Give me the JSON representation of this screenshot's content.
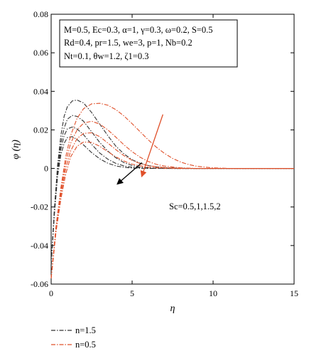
{
  "chart_data": {
    "type": "line",
    "xlabel": "η",
    "ylabel": "φ (η)",
    "xlim": [
      0,
      15
    ],
    "ylim": [
      -0.06,
      0.08
    ],
    "x_ticks": [
      0,
      5,
      10,
      15
    ],
    "y_ticks": [
      -0.06,
      -0.04,
      -0.02,
      0,
      0.02,
      0.04,
      0.06,
      0.08
    ],
    "x_tick_labels": [
      "0",
      "5",
      "10",
      "15"
    ],
    "y_tick_labels": [
      "-0.06",
      "-0.04",
      "-0.02",
      "0",
      "0.02",
      "0.04",
      "0.06",
      "0.08"
    ],
    "params": [
      "M=0.5, Ec=0.3, α=1, γ=0.3, ω=0.2, S=0.5",
      "Rd=0.4, pr=1.5, we=3, p=1, Nb=0.2",
      "Nt=0.1, θw=1.2, ζ1=0.3"
    ],
    "annotation": "Sc=0.5,1,1.5,2",
    "legend": [
      {
        "label": "n=1.5",
        "color": "#333333",
        "dash": "dashdot"
      },
      {
        "label": "n=0.5",
        "color": "#e0502a",
        "dash": "dashdot"
      }
    ],
    "series": [
      {
        "name": "n=1.5",
        "sc": 0.5,
        "color": "#333333",
        "x": [
          0,
          0.2,
          0.4,
          0.6,
          0.8,
          1,
          1.3,
          1.6,
          2,
          2.5,
          3,
          3.5,
          4,
          4.5,
          5,
          5.5,
          6,
          6.5,
          7,
          8,
          9,
          10,
          12,
          15
        ],
        "y": [
          -0.05,
          -0.021,
          0.002,
          0.017,
          0.027,
          0.032,
          0.035,
          0.0355,
          0.034,
          0.029,
          0.023,
          0.017,
          0.0115,
          0.0075,
          0.0045,
          0.0027,
          0.0015,
          0.0008,
          0.0004,
          0.0001,
          0,
          0,
          0,
          0
        ]
      },
      {
        "name": "n=1.5",
        "sc": 1,
        "color": "#333333",
        "x": [
          0,
          0.2,
          0.4,
          0.6,
          0.8,
          1,
          1.3,
          1.6,
          2,
          2.5,
          3,
          3.5,
          4,
          4.5,
          5,
          5.5,
          6,
          7,
          8,
          10,
          15
        ],
        "y": [
          -0.05,
          -0.022,
          0,
          0.013,
          0.021,
          0.0255,
          0.0275,
          0.027,
          0.0245,
          0.019,
          0.0135,
          0.009,
          0.0055,
          0.003,
          0.0015,
          0.0007,
          0.0003,
          0,
          0,
          0,
          0
        ]
      },
      {
        "name": "n=1.5",
        "sc": 1.5,
        "color": "#333333",
        "x": [
          0,
          0.2,
          0.4,
          0.6,
          0.8,
          1,
          1.3,
          1.6,
          2,
          2.5,
          3,
          3.5,
          4,
          4.5,
          5,
          6,
          8,
          10,
          15
        ],
        "y": [
          -0.05,
          -0.023,
          -0.002,
          0.01,
          0.017,
          0.0205,
          0.0215,
          0.0205,
          0.0175,
          0.0125,
          0.008,
          0.0048,
          0.0026,
          0.0013,
          0.0006,
          0.0001,
          0,
          0,
          0
        ]
      },
      {
        "name": "n=1.5",
        "sc": 2,
        "color": "#333333",
        "x": [
          0,
          0.2,
          0.4,
          0.6,
          0.8,
          1,
          1.3,
          1.6,
          2,
          2.5,
          3,
          3.5,
          4,
          4.5,
          5,
          6,
          8,
          10,
          15
        ],
        "y": [
          -0.05,
          -0.024,
          -0.004,
          0.007,
          0.013,
          0.016,
          0.0165,
          0.015,
          0.0122,
          0.0082,
          0.005,
          0.0027,
          0.0013,
          0.0006,
          0.0002,
          0,
          0,
          0,
          0
        ]
      },
      {
        "name": "n=0.5",
        "sc": 0.5,
        "color": "#e0502a",
        "x": [
          0,
          0.3,
          0.6,
          0.9,
          1.2,
          1.6,
          2,
          2.5,
          3,
          3.5,
          4,
          4.5,
          5,
          5.5,
          6,
          6.5,
          7,
          7.5,
          8,
          8.5,
          9,
          10,
          11,
          12,
          15
        ],
        "y": [
          -0.057,
          -0.03,
          -0.01,
          0.006,
          0.017,
          0.026,
          0.031,
          0.0335,
          0.0338,
          0.0328,
          0.0305,
          0.0272,
          0.0232,
          0.019,
          0.0148,
          0.011,
          0.0078,
          0.0052,
          0.0033,
          0.002,
          0.0011,
          0.0003,
          0,
          0,
          0
        ]
      },
      {
        "name": "n=0.5",
        "sc": 1,
        "color": "#e0502a",
        "x": [
          0,
          0.3,
          0.6,
          0.9,
          1.2,
          1.6,
          2,
          2.5,
          3,
          3.5,
          4,
          4.5,
          5,
          5.5,
          6,
          6.5,
          7,
          8,
          9,
          10,
          12,
          15
        ],
        "y": [
          -0.057,
          -0.031,
          -0.012,
          0.003,
          0.013,
          0.02,
          0.0235,
          0.0245,
          0.023,
          0.02,
          0.0162,
          0.0122,
          0.0087,
          0.0058,
          0.0036,
          0.0021,
          0.0012,
          0.0003,
          0,
          0,
          0,
          0
        ]
      },
      {
        "name": "n=0.5",
        "sc": 1.5,
        "color": "#e0502a",
        "x": [
          0,
          0.3,
          0.6,
          0.9,
          1.2,
          1.6,
          2,
          2.5,
          3,
          3.5,
          4,
          4.5,
          5,
          5.5,
          6,
          7,
          8,
          10,
          15
        ],
        "y": [
          -0.057,
          -0.032,
          -0.014,
          0,
          0.009,
          0.0155,
          0.0182,
          0.0185,
          0.0165,
          0.0132,
          0.0097,
          0.0066,
          0.0042,
          0.0025,
          0.0014,
          0.0004,
          0,
          0,
          0
        ]
      },
      {
        "name": "n=0.5",
        "sc": 2,
        "color": "#e0502a",
        "x": [
          0,
          0.3,
          0.6,
          0.9,
          1.2,
          1.6,
          2,
          2.5,
          3,
          3.5,
          4,
          4.5,
          5,
          6,
          7,
          8,
          10,
          15
        ],
        "y": [
          -0.057,
          -0.033,
          -0.016,
          -0.003,
          0.006,
          0.0115,
          0.0137,
          0.0135,
          0.0115,
          0.0087,
          0.006,
          0.0038,
          0.0022,
          0.0006,
          0.0001,
          0,
          0,
          0
        ]
      }
    ],
    "arrows": [
      {
        "color": "#000000",
        "from": [
          5.6,
          0.003
        ],
        "to": [
          4.1,
          -0.008
        ]
      },
      {
        "color": "#e0502a",
        "from": [
          6.9,
          0.028
        ],
        "to": [
          5.6,
          -0.004
        ]
      }
    ],
    "grid": false
  }
}
